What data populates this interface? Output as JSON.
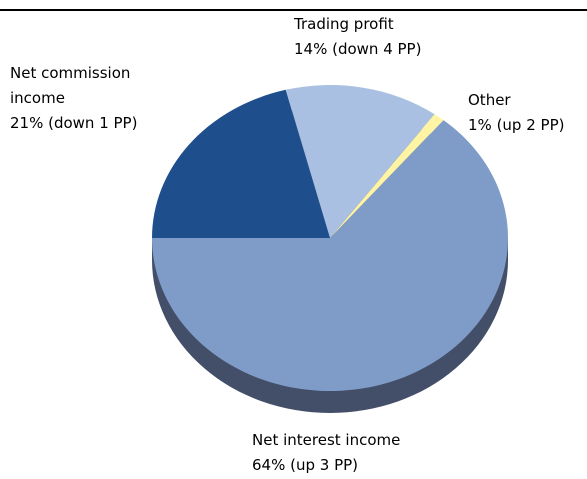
{
  "chart_data": {
    "type": "pie",
    "categories": [
      "Net interest income",
      "Net commission income",
      "Trading profit",
      "Other"
    ],
    "values": [
      64,
      21,
      14,
      1
    ],
    "value_labels": [
      "64% (up 3 PP)",
      "21% (down 1 PP)",
      "14% (down 4 PP)",
      "1% (up 2 PP)"
    ],
    "colors": [
      "#7f9cc8",
      "#1f4e8c",
      "#a9c0e2",
      "#fff4a3"
    ]
  }
}
